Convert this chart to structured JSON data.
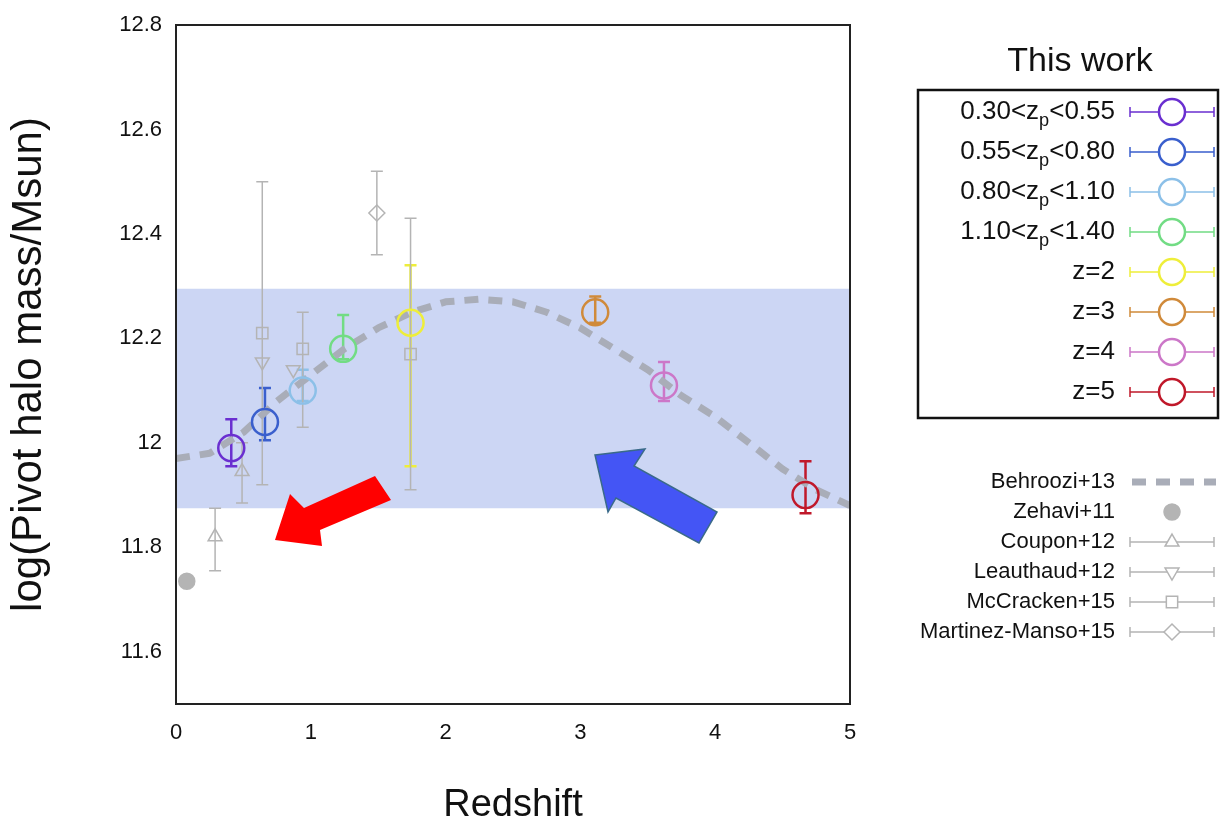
{
  "chart_data": {
    "type": "scatter",
    "xlabel": "Redshift",
    "ylabel": "log(Pivot halo mass/Msun)",
    "legend_title": "This work",
    "legend": "right",
    "xlim": [
      0,
      5
    ],
    "xticks": [
      0,
      1,
      2,
      3,
      4,
      5
    ],
    "ylim": [
      11.5,
      12.8
    ],
    "yticks": [
      11.6,
      11.8,
      12,
      12.2,
      12.4,
      12.6,
      12.8
    ],
    "bands": [
      {
        "axis": "y",
        "from": 11.875,
        "to": 12.295,
        "color": "#ccd6f4"
      }
    ],
    "series": [
      {
        "name": "0.30<z$_{p}$<0.55",
        "color": "#6a2fd0",
        "marker": "circle",
        "x": [
          0.41
        ],
        "values": [
          11.99
        ],
        "errors": [
          [
            11.955,
            12.045
          ]
        ]
      },
      {
        "name": "0.55<z$_{p}$<0.80",
        "color": "#3a5fcd",
        "marker": "circle",
        "x": [
          0.66
        ],
        "values": [
          12.04
        ],
        "errors": [
          [
            12.005,
            12.105
          ]
        ]
      },
      {
        "name": "0.80<z$_{p}$<1.10",
        "color": "#8cc0e8",
        "marker": "circle",
        "x": [
          0.94
        ],
        "values": [
          12.1
        ],
        "errors": [
          [
            12.08,
            12.14
          ]
        ]
      },
      {
        "name": "1.10<z$_{p}$<1.40",
        "color": "#72dc84",
        "marker": "circle",
        "x": [
          1.24
        ],
        "values": [
          12.18
        ],
        "errors": [
          [
            12.16,
            12.245
          ]
        ]
      },
      {
        "name": "z=2",
        "color": "#eeee3a",
        "marker": "circle",
        "x": [
          1.74
        ],
        "values": [
          12.23
        ],
        "errors": [
          [
            11.955,
            12.34
          ]
        ]
      },
      {
        "name": "z=3",
        "color": "#d08a3a",
        "marker": "circle",
        "x": [
          3.11
        ],
        "values": [
          12.25
        ],
        "errors": [
          [
            12.23,
            12.28
          ]
        ]
      },
      {
        "name": "z=4",
        "color": "#cc77c8",
        "marker": "circle",
        "x": [
          3.62
        ],
        "values": [
          12.11
        ],
        "errors": [
          [
            12.08,
            12.155
          ]
        ]
      },
      {
        "name": "z=5",
        "color": "#c0182a",
        "marker": "circle",
        "x": [
          4.67
        ],
        "values": [
          11.9
        ],
        "errors": [
          [
            11.865,
            11.965
          ]
        ]
      },
      {
        "name": "Behroozi+13",
        "color": "#a9adb8",
        "type": "line",
        "marker": "none",
        "line_style": "dashed",
        "x": [
          0,
          0.25,
          0.5,
          0.75,
          1,
          1.25,
          1.5,
          1.75,
          2,
          2.25,
          2.5,
          2.75,
          3,
          3.25,
          3.5,
          3.75,
          4,
          4.25,
          4.5,
          4.75,
          5
        ],
        "values": [
          11.97,
          11.98,
          12.02,
          12.08,
          12.13,
          12.18,
          12.22,
          12.25,
          12.27,
          12.275,
          12.27,
          12.25,
          12.22,
          12.18,
          12.14,
          12.09,
          12.05,
          12,
          11.95,
          11.91,
          11.88
        ]
      },
      {
        "name": "Zehavi+11",
        "color": "#b4b4b4",
        "marker": "circle",
        "x": [
          0.08
        ],
        "values": [
          11.735
        ]
      },
      {
        "name": "Coupon+12",
        "color": "#b4b4b4",
        "marker": "triangle",
        "x": [
          0.29,
          0.49
        ],
        "values": [
          11.82,
          11.945
        ],
        "errors": [
          [
            11.755,
            11.875
          ],
          [
            11.885,
            12.0
          ]
        ]
      },
      {
        "name": "Leauthaud+12",
        "color": "#b4b4b4",
        "marker": "triangle-down",
        "x": [
          0.64,
          0.87
        ],
        "values": [
          12.155,
          12.14
        ]
      },
      {
        "name": "McCracken+15",
        "color": "#b4b4b4",
        "marker": "square",
        "x": [
          0.64,
          0.94,
          1.74
        ],
        "values": [
          12.21,
          12.18,
          12.17
        ],
        "errors": [
          [
            11.92,
            12.5
          ],
          [
            12.03,
            12.25
          ],
          [
            11.91,
            12.43
          ]
        ]
      },
      {
        "name": "Martinez-Manso+15",
        "color": "#b4b4b4",
        "marker": "diamond",
        "x": [
          1.49
        ],
        "values": [
          12.44
        ],
        "errors": [
          [
            12.36,
            12.52
          ]
        ]
      }
    ]
  }
}
